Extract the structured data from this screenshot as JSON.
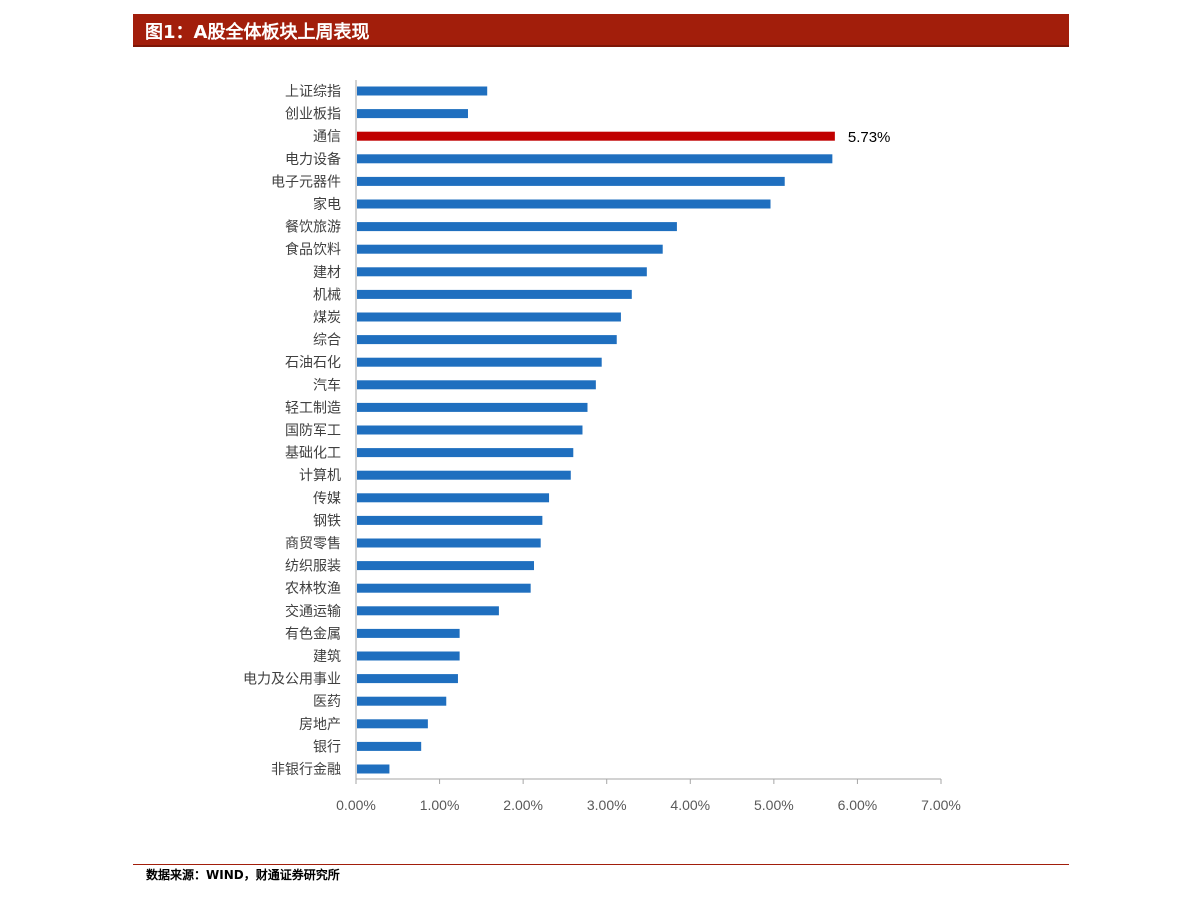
{
  "header": {
    "title": "图1：A股全体板块上周表现"
  },
  "footer": {
    "source": "数据来源：WIND，财通证券研究所"
  },
  "colors": {
    "bar": "#1f6fbf",
    "highlight": "#c00000",
    "title_bg": "#a21e0b"
  },
  "chart_data": {
    "type": "bar",
    "orientation": "horizontal",
    "categories": [
      "上证综指",
      "创业板指",
      "通信",
      "电力设备",
      "电子元器件",
      "家电",
      "餐饮旅游",
      "食品饮料",
      "建材",
      "机械",
      "煤炭",
      "综合",
      "石油石化",
      "汽车",
      "轻工制造",
      "国防军工",
      "基础化工",
      "计算机",
      "传媒",
      "钢铁",
      "商贸零售",
      "纺织服装",
      "农林牧渔",
      "交通运输",
      "有色金属",
      "建筑",
      "电力及公用事业",
      "医药",
      "房地产",
      "银行",
      "非银行金融"
    ],
    "values": [
      1.57,
      1.34,
      5.73,
      5.7,
      5.13,
      4.96,
      3.84,
      3.67,
      3.48,
      3.3,
      3.17,
      3.12,
      2.94,
      2.87,
      2.77,
      2.71,
      2.6,
      2.57,
      2.31,
      2.23,
      2.21,
      2.13,
      2.09,
      1.71,
      1.24,
      1.24,
      1.22,
      1.08,
      0.86,
      0.78,
      0.4
    ],
    "highlight_index": 2,
    "highlight_label": "5.73%",
    "xlim": [
      0,
      7
    ],
    "x_ticks": [
      "0.00%",
      "1.00%",
      "2.00%",
      "3.00%",
      "4.00%",
      "5.00%",
      "6.00%",
      "7.00%"
    ],
    "grid": false,
    "legend": "none"
  }
}
